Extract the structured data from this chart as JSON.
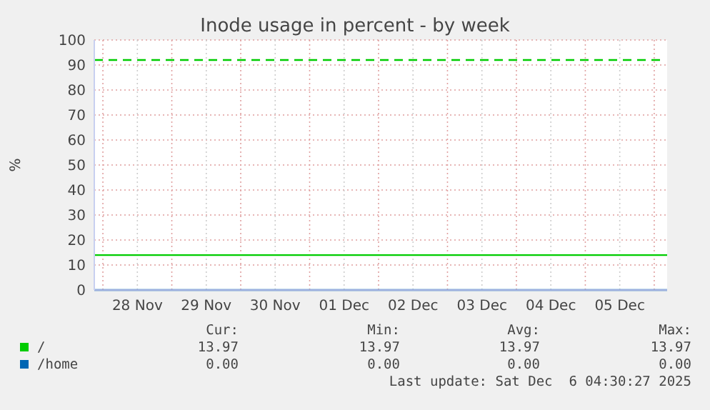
{
  "chart_data": {
    "type": "line",
    "title": "Inode usage in percent - by week",
    "ylabel": "%",
    "xlim": [
      "2025-11-27T21:00",
      "2025-12-06T04:30"
    ],
    "xticks": [
      {
        "value": "2025-11-28T00:00",
        "label": null
      },
      {
        "value": "2025-11-28T12:00",
        "label": "28 Nov"
      },
      {
        "value": "2025-11-29T00:00",
        "label": null
      },
      {
        "value": "2025-11-29T12:00",
        "label": "29 Nov"
      },
      {
        "value": "2025-11-30T00:00",
        "label": null
      },
      {
        "value": "2025-11-30T12:00",
        "label": "30 Nov"
      },
      {
        "value": "2025-12-01T00:00",
        "label": null
      },
      {
        "value": "2025-12-01T12:00",
        "label": "01 Dec"
      },
      {
        "value": "2025-12-02T00:00",
        "label": null
      },
      {
        "value": "2025-12-02T12:00",
        "label": "02 Dec"
      },
      {
        "value": "2025-12-03T00:00",
        "label": null
      },
      {
        "value": "2025-12-03T12:00",
        "label": "03 Dec"
      },
      {
        "value": "2025-12-04T00:00",
        "label": null
      },
      {
        "value": "2025-12-04T12:00",
        "label": "04 Dec"
      },
      {
        "value": "2025-12-05T00:00",
        "label": null
      },
      {
        "value": "2025-12-05T12:00",
        "label": "05 Dec"
      },
      {
        "value": "2025-12-06T00:00",
        "label": null
      }
    ],
    "ylim": [
      0,
      100
    ],
    "yticks": [
      0,
      10,
      20,
      30,
      40,
      50,
      60,
      70,
      80,
      90,
      100
    ],
    "grid": true,
    "legend": "bottom",
    "line_style": "solid",
    "series": [
      {
        "name": "/",
        "color": "#00cc00",
        "x": [
          "2025-11-27T21:00",
          "2025-12-06T04:30"
        ],
        "values": [
          13.97,
          13.97
        ]
      },
      {
        "name": "/home",
        "color": "#0066b3",
        "x": [
          "2025-11-27T21:00",
          "2025-12-06T04:30"
        ],
        "values": [
          0,
          0
        ]
      }
    ],
    "ref_lines": [
      {
        "axis": "y",
        "value": 92,
        "color": "#00cc00",
        "line_style": "dashed"
      }
    ],
    "annotations": [
      "Cur:",
      "Min:",
      "Avg:",
      "Max:",
      "13.97",
      "13.97",
      "13.97",
      "13.97",
      "0.00",
      "0.00",
      "0.00",
      "0.00",
      "Last update: Sat Dec  6 04:30:27 2025"
    ]
  }
}
